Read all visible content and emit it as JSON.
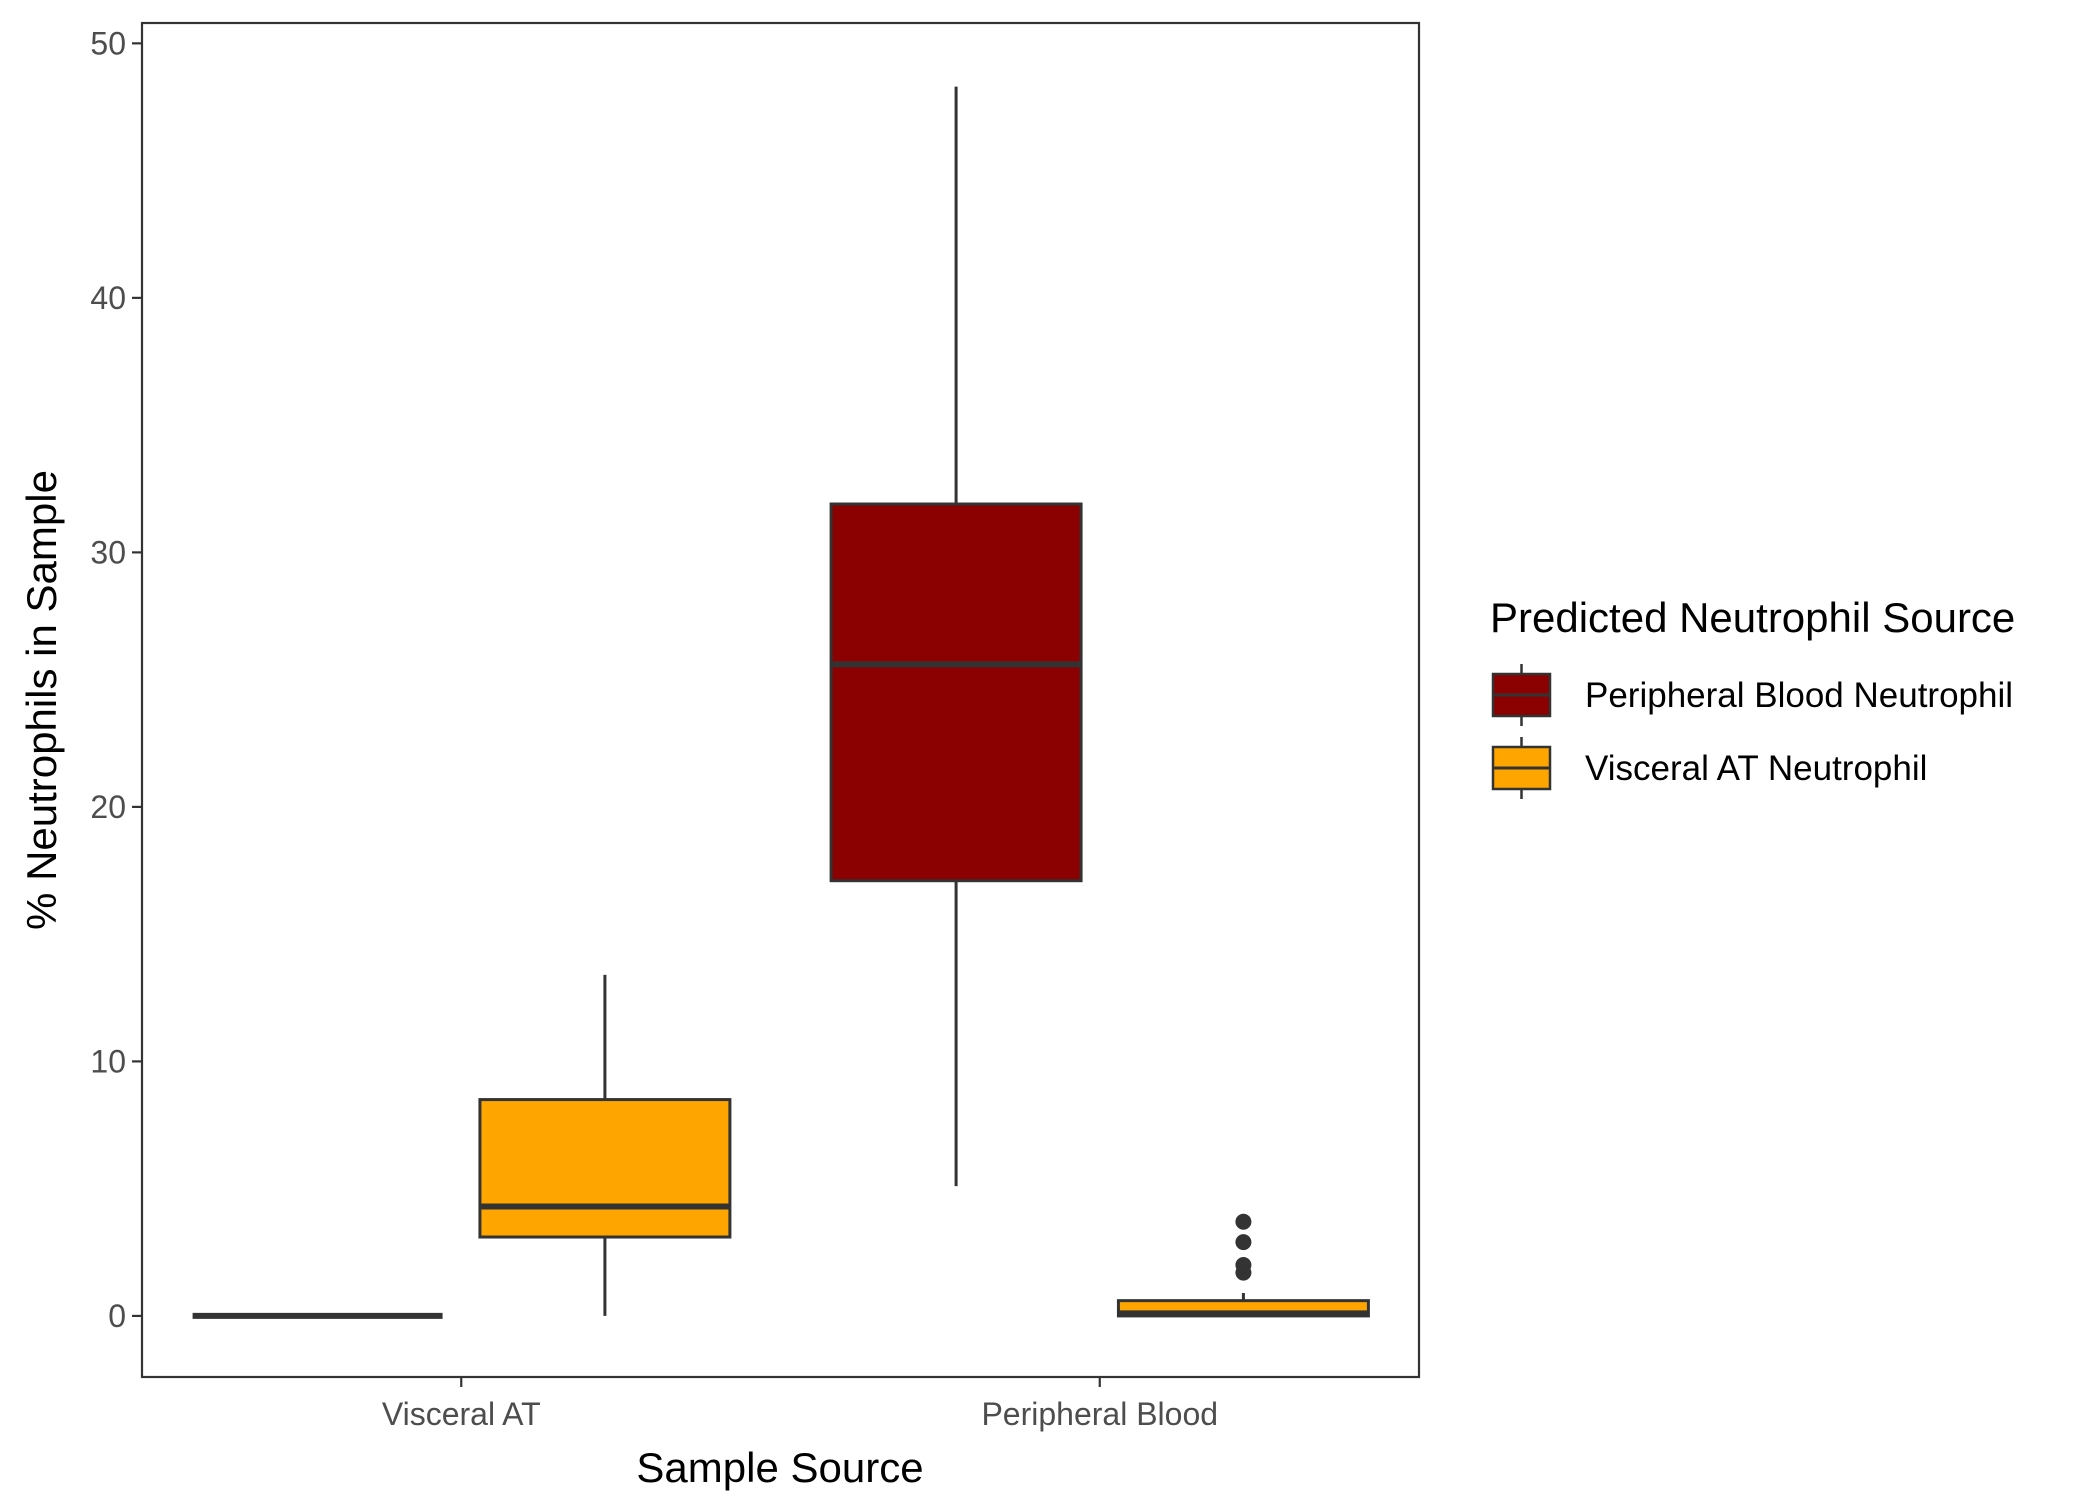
{
  "chart_data": {
    "type": "box",
    "xlabel": "Sample Source",
    "ylabel": "% Neutrophils in Sample",
    "ylim": [
      -2.4,
      50.8
    ],
    "yticks": [
      0,
      10,
      20,
      30,
      40,
      50
    ],
    "categories": [
      "Visceral AT",
      "Peripheral Blood"
    ],
    "grid": false,
    "legend": {
      "title": "Predicted Neutrophil Source",
      "position": "right"
    },
    "series": [
      {
        "name": "Peripheral Blood Neutrophil",
        "color": "#8B0000",
        "boxes": [
          {
            "category": "Visceral AT",
            "min": 0,
            "q1": 0,
            "median": 0,
            "q3": 0,
            "max": 0,
            "outliers": []
          },
          {
            "category": "Peripheral Blood",
            "min": 5.1,
            "q1": 17.1,
            "median": 25.6,
            "q3": 31.9,
            "max": 48.3,
            "outliers": []
          }
        ]
      },
      {
        "name": "Visceral AT Neutrophil",
        "color": "#FFA500",
        "boxes": [
          {
            "category": "Visceral AT",
            "min": 0,
            "q1": 3.1,
            "median": 4.3,
            "q3": 8.5,
            "max": 13.4,
            "outliers": []
          },
          {
            "category": "Peripheral Blood",
            "min": 0,
            "q1": 0,
            "median": 0.1,
            "q3": 0.6,
            "max": 0.9,
            "outliers": [
              1.7,
              2.0,
              2.9,
              3.7
            ]
          }
        ]
      }
    ]
  }
}
